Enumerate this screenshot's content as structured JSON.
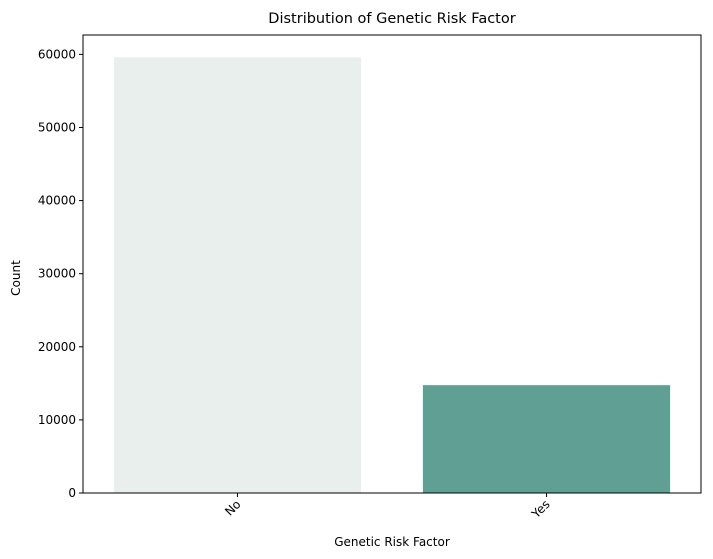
{
  "chart_data": {
    "type": "bar",
    "title": "Distribution of Genetic Risk Factor",
    "xlabel": "Genetic Risk Factor",
    "ylabel": "Count",
    "categories": [
      "No",
      "Yes"
    ],
    "values": [
      59600,
      14750
    ],
    "bar_colors": [
      "#e9efed",
      "#5f9f94"
    ],
    "ylim": [
      0,
      62650
    ],
    "yticks": [
      0,
      10000,
      20000,
      30000,
      40000,
      50000,
      60000
    ],
    "xtick_rotation": -45,
    "grid": false,
    "legend": "none"
  }
}
